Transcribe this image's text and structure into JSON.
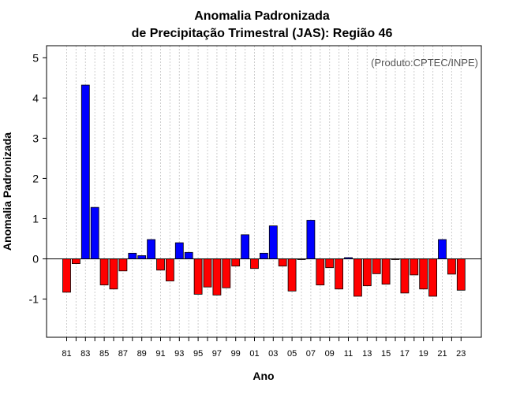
{
  "chart_data": {
    "type": "bar",
    "title": "Anomalia Padronizada",
    "subtitle": "de Precipitação Trimestral (JAS): Região 46",
    "xlabel": "Ano",
    "ylabel": "Anomalia Padronizada",
    "annotation": "(Produto:CPTEC/INPE)",
    "ylim": [
      -1.95,
      5.3
    ],
    "yticks": [
      -1,
      0,
      1,
      2,
      3,
      4,
      5
    ],
    "grid": "vertical dotted lines at each year",
    "colors": {
      "positive": "#0000ff",
      "negative": "#ff0000",
      "zero_line": "#000000"
    },
    "categories": [
      "81",
      "82",
      "83",
      "84",
      "85",
      "86",
      "87",
      "88",
      "89",
      "90",
      "91",
      "92",
      "93",
      "94",
      "95",
      "96",
      "97",
      "98",
      "99",
      "00",
      "01",
      "02",
      "03",
      "04",
      "05",
      "06",
      "07",
      "08",
      "09",
      "10",
      "11",
      "12",
      "13",
      "14",
      "15",
      "16",
      "17",
      "18",
      "19",
      "20",
      "21",
      "22",
      "23"
    ],
    "tick_labels": [
      "81",
      "83",
      "85",
      "87",
      "89",
      "91",
      "93",
      "95",
      "97",
      "99",
      "01",
      "03",
      "05",
      "07",
      "09",
      "11",
      "13",
      "15",
      "17",
      "19",
      "21",
      "23"
    ],
    "values": [
      -0.83,
      -0.12,
      4.32,
      1.28,
      -0.65,
      -0.75,
      -0.3,
      0.14,
      0.08,
      0.48,
      -0.28,
      -0.55,
      0.4,
      0.16,
      -0.88,
      -0.7,
      -0.9,
      -0.72,
      -0.18,
      0.6,
      -0.24,
      0.14,
      0.82,
      -0.18,
      -0.8,
      -0.02,
      0.96,
      -0.65,
      -0.22,
      -0.75,
      0.03,
      -0.93,
      -0.67,
      -0.37,
      -0.63,
      -0.02,
      -0.85,
      -0.4,
      -0.75,
      -0.93,
      0.48,
      -0.38,
      -0.78
    ]
  }
}
